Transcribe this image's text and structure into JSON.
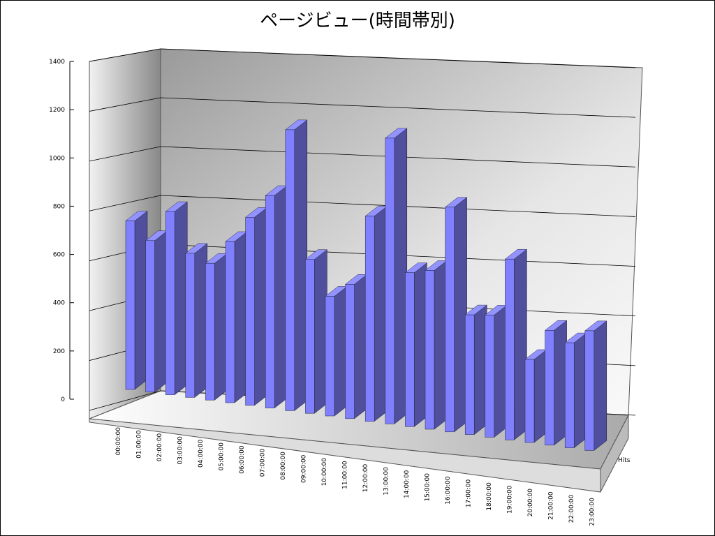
{
  "chart_data": {
    "type": "bar3d",
    "title": "ページビュー(時間帯別)",
    "categories": [
      "00:00:00",
      "01:00:00",
      "02:00:00",
      "03:00:00",
      "04:00:00",
      "05:00:00",
      "06:00:00",
      "07:00:00",
      "08:00:00",
      "09:00:00",
      "10:00:00",
      "11:00:00",
      "12:00:00",
      "13:00:00",
      "14:00:00",
      "15:00:00",
      "16:00:00",
      "17:00:00",
      "18:00:00",
      "19:00:00",
      "20:00:00",
      "21:00:00",
      "22:00:00",
      "23:00:00"
    ],
    "series": [
      {
        "name": "Hits",
        "color": "#8080ff",
        "values": [
          690,
          620,
          750,
          590,
          560,
          660,
          770,
          870,
          1150,
          630,
          490,
          550,
          840,
          1170,
          630,
          650,
          920,
          490,
          500,
          740,
          340,
          470,
          430,
          490
        ]
      }
    ],
    "ylim": [
      0,
      1400
    ],
    "yticks": [
      0,
      200,
      400,
      600,
      800,
      1000,
      1200,
      1400
    ],
    "grid": true
  }
}
